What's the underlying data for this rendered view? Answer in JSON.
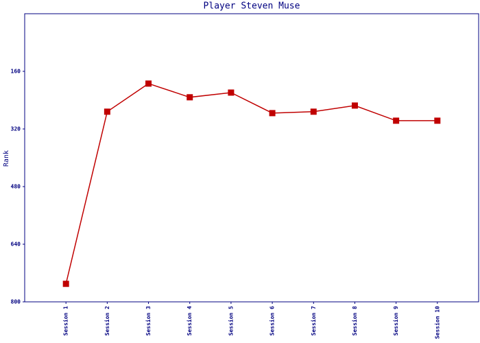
{
  "chart_data": {
    "type": "line",
    "title": "Player Steven Muse",
    "y_label": "Rank",
    "categories": [
      "Session 1",
      "Session 2",
      "Session 3",
      "Session 4",
      "Session 5",
      "Session 6",
      "Session 7",
      "Session 8",
      "Session 9",
      "Session 10"
    ],
    "series": [
      {
        "name": "Rank",
        "color": "#c00000",
        "values": [
          750,
          272,
          194,
          232,
          219,
          276,
          272,
          255,
          297,
          297
        ]
      }
    ],
    "ylim": [
      800,
      0
    ],
    "yticks": [
      160,
      320,
      480,
      640,
      800
    ],
    "grid": false
  }
}
